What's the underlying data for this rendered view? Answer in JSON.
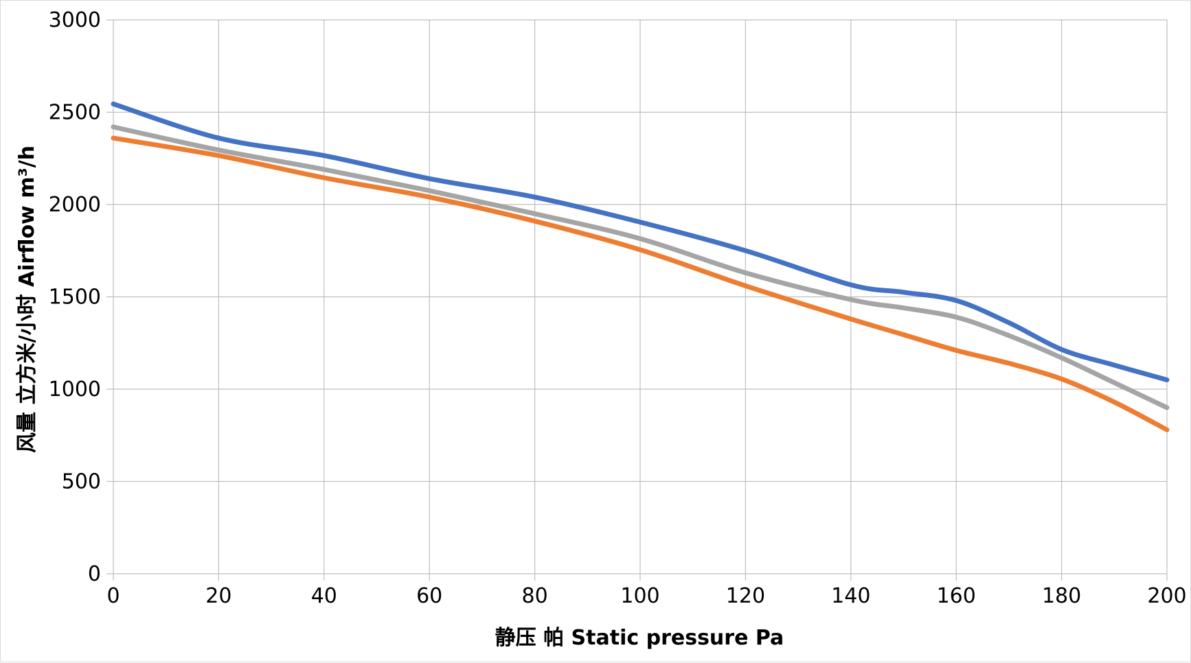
{
  "chart_data": {
    "type": "line",
    "title": "",
    "xlabel": "静压 帕 Static pressure Pa",
    "ylabel": "风量 立方米/小时 Airflow m³/h",
    "xlim": [
      0,
      200
    ],
    "ylim": [
      0,
      3000
    ],
    "x_ticks": [
      0,
      20,
      40,
      60,
      80,
      100,
      120,
      140,
      160,
      180,
      200
    ],
    "y_ticks": [
      0,
      500,
      1000,
      1500,
      2000,
      2500,
      3000
    ],
    "grid": true,
    "legend": "none",
    "x": [
      0,
      20,
      40,
      60,
      80,
      100,
      120,
      140,
      150,
      160,
      170,
      180,
      190,
      200
    ],
    "series": [
      {
        "name": "blue",
        "color": "#4472c4",
        "values": [
          2545,
          2360,
          2265,
          2140,
          2040,
          1905,
          1750,
          1565,
          1525,
          1480,
          1360,
          1215,
          1130,
          1050
        ]
      },
      {
        "name": "gray",
        "color": "#a5a5a5",
        "values": [
          2420,
          2295,
          2190,
          2075,
          1950,
          1815,
          1630,
          1485,
          1440,
          1390,
          1290,
          1170,
          1035,
          900
        ]
      },
      {
        "name": "orange",
        "color": "#ed7d31",
        "values": [
          2360,
          2265,
          2145,
          2040,
          1910,
          1755,
          1560,
          1380,
          1295,
          1210,
          1140,
          1055,
          930,
          780
        ]
      }
    ]
  }
}
